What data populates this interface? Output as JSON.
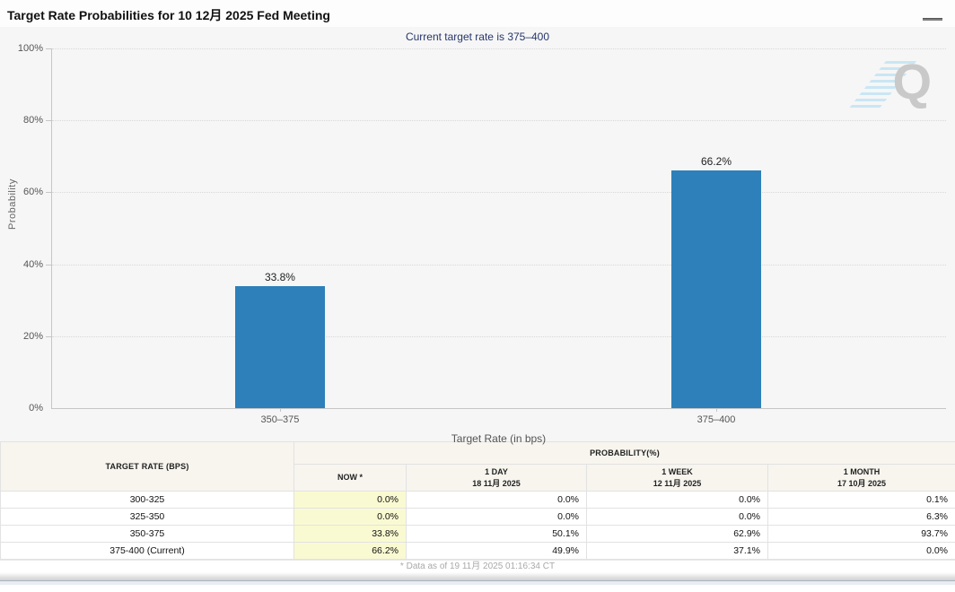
{
  "header": {
    "title": "Target Rate Probabilities for 10 12月 2025 Fed Meeting"
  },
  "subtitle": "Current target rate is 375–400",
  "chart_data": {
    "type": "bar",
    "title": "Target Rate Probabilities for 10 12月 2025 Fed Meeting",
    "categories": [
      "350–375",
      "375–400"
    ],
    "values": [
      33.8,
      66.2
    ],
    "value_labels": [
      "33.8%",
      "66.2%"
    ],
    "xlabel": "Target Rate (in bps)",
    "ylabel": "Probability",
    "ylim": [
      0,
      100
    ],
    "yticks": [
      "0%",
      "20%",
      "40%",
      "60%",
      "80%",
      "100%"
    ],
    "grid": "horizontal dotted",
    "legend": "none",
    "watermark": "Q"
  },
  "colors": {
    "bar": "#2d80b9",
    "now_column_bg": "#fafad2",
    "subtitle_text": "#26366b",
    "watermark_stripes": "#bfe2f3"
  },
  "table": {
    "header_rate": "TARGET RATE (BPS)",
    "header_probability": "PROBABILITY(%)",
    "col_now": "NOW *",
    "col_day_label": "1 DAY",
    "col_day_date": "18 11月 2025",
    "col_week_label": "1 WEEK",
    "col_week_date": "12 11月 2025",
    "col_month_label": "1 MONTH",
    "col_month_date": "17 10月 2025",
    "rows": [
      [
        "300-325",
        "0.0%",
        "0.0%",
        "0.0%",
        "0.1%"
      ],
      [
        "325-350",
        "0.0%",
        "0.0%",
        "0.0%",
        "6.3%"
      ],
      [
        "350-375",
        "33.8%",
        "50.1%",
        "62.9%",
        "93.7%"
      ],
      [
        "375-400 (Current)",
        "66.2%",
        "49.9%",
        "37.1%",
        "0.0%"
      ]
    ]
  },
  "footer": {
    "note": "* Data as of 19 11月 2025 01:16:34 CT"
  }
}
